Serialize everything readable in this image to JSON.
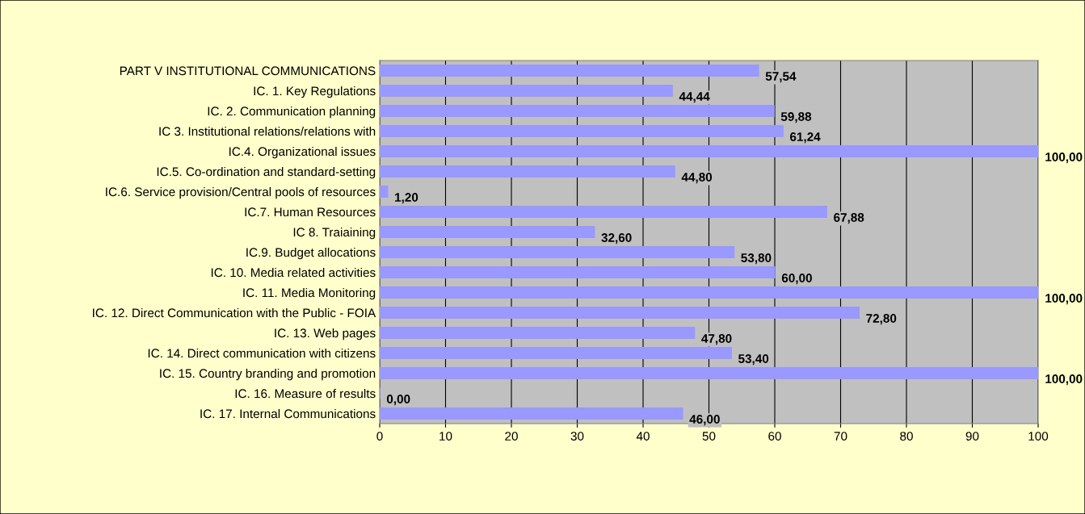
{
  "chart_data": {
    "type": "bar",
    "orientation": "horizontal",
    "categories": [
      "PART V INSTITUTIONAL COMMUNICATIONS",
      "IC. 1. Key Regulations",
      "IC. 2. Communication planning",
      "IC 3. Institutional relations/relations with",
      "IC.4. Organizational issues",
      "IC.5. Co-ordination and standard-setting",
      "IC.6. Service provision/Central pools of resources",
      "IC.7. Human Resources",
      "IC 8. Traiaining",
      "IC.9. Budget allocations",
      "IC. 10. Media related activities",
      "IC. 11. Media Monitoring",
      "IC. 12. Direct Communication with the Public - FOIA",
      "IC. 13. Web pages",
      "IC. 14. Direct communication with citizens",
      "IC. 15. Country branding and promotion",
      "IC. 16. Measure of results",
      "IC. 17. Internal Communications"
    ],
    "values": [
      57.54,
      44.44,
      59.88,
      61.24,
      100.0,
      44.8,
      1.2,
      67.88,
      32.6,
      53.8,
      60.0,
      100.0,
      72.8,
      47.8,
      53.4,
      100.0,
      0.0,
      46.0
    ],
    "value_labels": [
      "57,54",
      "44,44",
      "59,88",
      "61,24",
      "100,00",
      "44,80",
      "1,20",
      "67,88",
      "32,60",
      "53,80",
      "60,00",
      "100,00",
      "72,80",
      "47,80",
      "53,40",
      "100,00",
      "0,00",
      "46,00"
    ],
    "color": "#9999ff",
    "xlim": [
      0,
      100
    ],
    "xticks": [
      0,
      10,
      20,
      30,
      40,
      50,
      60,
      70,
      80,
      90,
      100
    ],
    "grid": "x",
    "legend": false
  }
}
